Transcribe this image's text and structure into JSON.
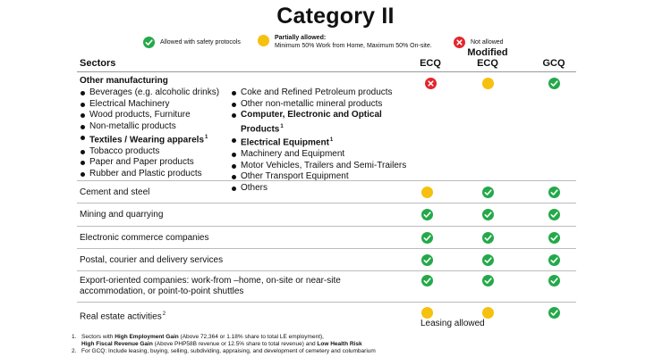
{
  "title": "Category II",
  "legend": {
    "allowed": "Allowed with safety protocols",
    "partial_title": "Partially allowed:",
    "partial_desc": "Minimum 50% Work from Home,  Maximum 50% On-site.",
    "not_allowed": "Not allowed",
    "colors": {
      "allowed": "#24a94a",
      "partial": "#f6c00e",
      "not_allowed": "#e4262b"
    }
  },
  "header": {
    "sectors": "Sectors",
    "ecq": "ECQ",
    "mecq_1": "Modified",
    "mecq_2": "ECQ",
    "gcq": "GCQ"
  },
  "manufacturing": {
    "title": "Other manufacturing",
    "left_items": [
      "Beverages (e.g. alcoholic drinks)",
      "Electrical Machinery",
      "Wood products, Furniture",
      "Non-metallic products",
      "Textiles / Wearing apparels",
      "Tobacco products",
      "Paper and Paper products",
      "Rubber and Plastic products"
    ],
    "right_items": [
      "Coke and Refined Petroleum products",
      "Other non-metallic mineral products",
      "Computer, Electronic and Optical",
      "Products",
      "Electrical Equipment",
      "Machinery and Equipment",
      "Motor Vehicles, Trailers and Semi-Trailers",
      "Other Transport Equipment",
      "Others"
    ],
    "sup": "1",
    "status": {
      "ecq": "not_allowed",
      "mecq": "partial",
      "gcq": "allowed"
    }
  },
  "rows": [
    {
      "name": "Cement and steel",
      "ecq": "partial",
      "mecq": "allowed",
      "gcq": "allowed"
    },
    {
      "name": "Mining and quarrying",
      "ecq": "allowed",
      "mecq": "allowed",
      "gcq": "allowed"
    },
    {
      "name": "Electronic commerce companies",
      "ecq": "allowed",
      "mecq": "allowed",
      "gcq": "allowed"
    },
    {
      "name": "Postal, courier and delivery services",
      "ecq": "allowed",
      "mecq": "allowed",
      "gcq": "allowed"
    },
    {
      "name_1": "Export-oriented companies: work-from –home, on-site or near-site",
      "name_2": "accommodation, or point-to-point shuttles",
      "ecq": "allowed",
      "mecq": "allowed",
      "gcq": "allowed"
    },
    {
      "name": "Real estate activities",
      "sup": "2",
      "ecq": "partial",
      "mecq": "partial",
      "gcq": "allowed",
      "note": "Leasing allowed"
    }
  ],
  "footnotes": {
    "n1": "1.",
    "f1_a": "Sectors with ",
    "f1_b": "High Employment Gain",
    "f1_c": " (Above 72,364 or 1.18% share to total LE employment),",
    "f1_d": "High Fiscal Revenue Gain",
    "f1_e": " (Above PHP58B revenue or 12.5% share to total revenue) and ",
    "f1_f": "Low Health Risk",
    "n2": "2.",
    "f2": "For GCQ: Include leasing, buying, selling, subdividing, appraising, and development of cemetery and columbarium"
  }
}
